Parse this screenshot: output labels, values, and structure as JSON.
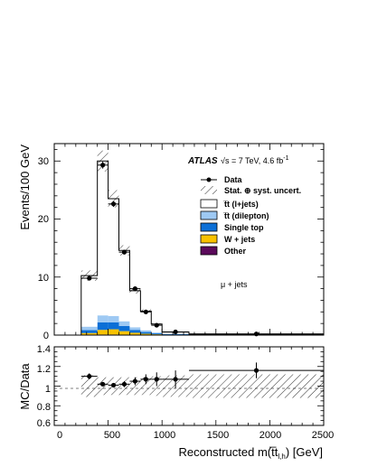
{
  "chart_data": [
    {
      "type": "bar",
      "ylabel": "Events/100 GeV",
      "xlim": [
        0,
        2500
      ],
      "ylim": [
        0,
        33
      ],
      "yticks": [
        "0",
        "10",
        "20",
        "30"
      ],
      "atlas_label": "ATLAS",
      "energy_label": "√s = 7 TeV, 4.6 fb",
      "lumi_sup": "-1",
      "channel": "μ + jets",
      "bin_edges": [
        250,
        400,
        500,
        600,
        700,
        800,
        900,
        1000,
        1250,
        2500
      ],
      "stack": [
        {
          "name": "Other",
          "color": "#5b0a5b",
          "values": [
            0.05,
            0.1,
            0.1,
            0.08,
            0.05,
            0.03,
            0.02,
            0.01,
            0.0
          ]
        },
        {
          "name": "W + jets",
          "color": "#f9c200",
          "values": [
            0.3,
            0.8,
            0.9,
            0.6,
            0.35,
            0.2,
            0.12,
            0.06,
            0.02
          ]
        },
        {
          "name": "Single top",
          "color": "#0c6fd6",
          "values": [
            0.5,
            1.3,
            1.2,
            0.9,
            0.5,
            0.3,
            0.16,
            0.08,
            0.03
          ]
        },
        {
          "name": "t̅t (dilepton)",
          "color": "#9ec9f3",
          "values": [
            0.6,
            1.2,
            1.1,
            0.8,
            0.45,
            0.3,
            0.15,
            0.07,
            0.03
          ]
        },
        {
          "name": "t̅t (l+jets)",
          "color": "#ffffff",
          "values": [
            8.8,
            26.6,
            20.2,
            12.2,
            6.3,
            3.3,
            1.45,
            0.3,
            0.1
          ]
        }
      ],
      "total_prediction": [
        10.25,
        30.0,
        23.5,
        14.6,
        7.65,
        4.13,
        1.9,
        0.52,
        0.18
      ],
      "band_halfwidth": [
        0.9,
        1.8,
        1.5,
        0.9,
        0.5,
        0.3,
        0.15,
        0.05,
        0.02
      ],
      "data": {
        "name": "Data",
        "x": [
          325,
          450,
          550,
          650,
          750,
          850,
          950,
          1125,
          1875
        ],
        "y": [
          9.8,
          29.3,
          22.6,
          14.3,
          8.0,
          4.0,
          1.7,
          0.55,
          0.2
        ],
        "err": [
          0.35,
          0.6,
          0.5,
          0.4,
          0.3,
          0.22,
          0.14,
          0.06,
          0.02
        ]
      },
      "legend": {
        "data": "Data",
        "uncert": "Stat. ⊕ syst. uncert.",
        "ljets": "t̅t (l+jets)",
        "dilep": "t̅t (dilepton)",
        "single_top": "Single top",
        "wjets": "W + jets",
        "other": "Other"
      }
    },
    {
      "type": "scatter",
      "ylabel": "MC/Data",
      "xlabel": "Reconstructed m(t̅t",
      "xlabel_sub": "l,h",
      "xlabel_unit": ") [GeV]",
      "xlim": [
        0,
        2500
      ],
      "ylim": [
        0.6,
        1.4
      ],
      "xticks": [
        "0",
        "500",
        "1000",
        "1500",
        "2000",
        "2500"
      ],
      "yticks": [
        "0.6",
        "0.8",
        "1",
        "1.2",
        "1.4"
      ],
      "ratio": {
        "x": [
          325,
          450,
          550,
          650,
          750,
          850,
          950,
          1125,
          1875
        ],
        "y": [
          1.1,
          1.02,
          1.01,
          1.02,
          1.05,
          1.07,
          1.07,
          1.07,
          1.16
        ],
        "err": [
          0.03,
          0.02,
          0.02,
          0.03,
          0.04,
          0.05,
          0.07,
          0.09,
          0.08
        ]
      },
      "band_halfwidth": [
        0.11,
        0.09,
        0.09,
        0.09,
        0.09,
        0.09,
        0.1,
        0.11,
        0.12
      ]
    }
  ]
}
